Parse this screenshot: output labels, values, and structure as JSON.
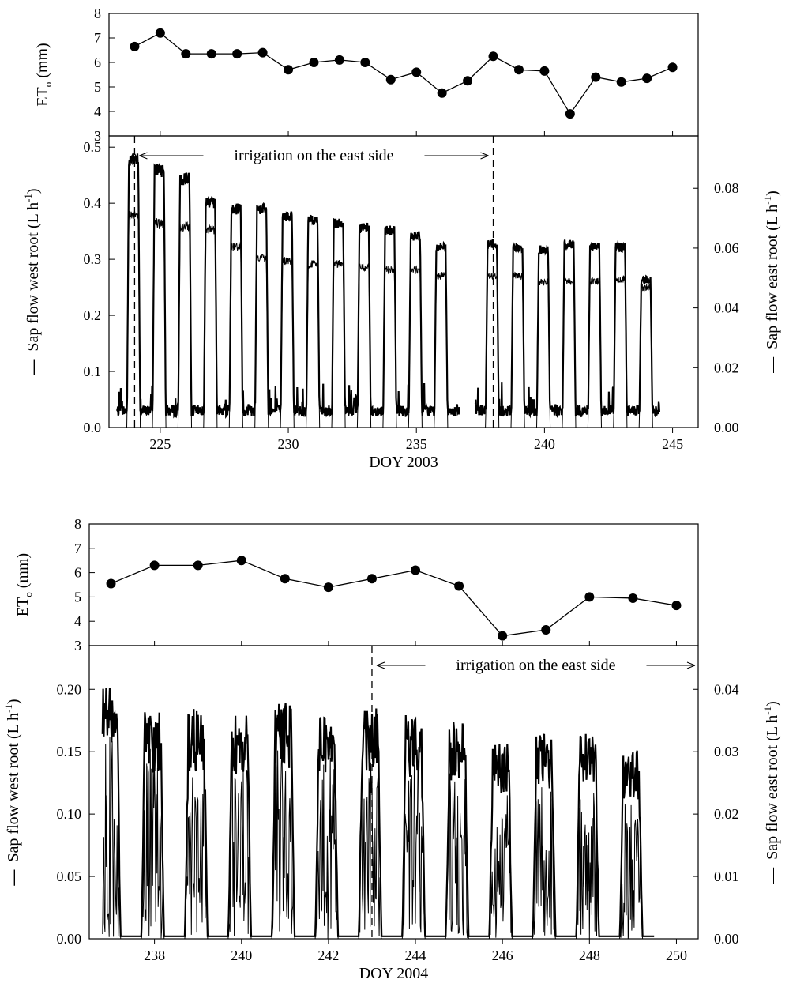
{
  "chart_data": [
    {
      "type": "line",
      "panel": "top-et",
      "ylabel": "ET",
      "ylabel_subscript": "o",
      "ylabel_unit": "(mm)",
      "ylim": [
        3,
        8
      ],
      "yticks": [
        3,
        4,
        5,
        6,
        7,
        8
      ],
      "xlim": [
        223,
        246
      ],
      "x": [
        224,
        225,
        226,
        227,
        228,
        229,
        230,
        231,
        232,
        233,
        234,
        235,
        236,
        237,
        238,
        239,
        240,
        241,
        242,
        243,
        244,
        245
      ],
      "values": [
        6.65,
        7.2,
        6.35,
        6.35,
        6.35,
        6.4,
        5.7,
        6.0,
        6.1,
        6.0,
        5.3,
        5.6,
        4.75,
        5.25,
        6.25,
        5.7,
        5.65,
        3.9,
        5.4,
        5.2,
        5.35,
        5.8
      ]
    },
    {
      "type": "line",
      "panel": "top-sap",
      "xlabel": "DOY 2003",
      "xlim": [
        223,
        246
      ],
      "xticks": [
        225,
        230,
        235,
        240,
        245
      ],
      "ylabel_left": "Sap flow west root (L h",
      "ylabel_right": "Sap flow east root (L h",
      "ylabel_sup": "-1",
      "ylabel_close": ")",
      "legend_mark": "—",
      "ylim_left": [
        0,
        0.52
      ],
      "yticks_left": [
        "0.0",
        "0.1",
        "0.2",
        "0.3",
        "0.4",
        "0.5"
      ],
      "ylim_right": [
        0,
        0.0975
      ],
      "yticks_right": [
        "0.00",
        "0.02",
        "0.04",
        "0.06",
        "0.08"
      ],
      "annotation": "irrigation on the east side",
      "irrigation_x": [
        224,
        238
      ],
      "gap": [
        236.7,
        237.3
      ],
      "series": [
        {
          "axis": "left",
          "style": "thick",
          "base": 0.03,
          "peaks": [
            0.49,
            0.49,
            0.47,
            0.455,
            0.41,
            0.4,
            0.4,
            0.385,
            0.38,
            0.375,
            0.365,
            0.36,
            0.35,
            0.33,
            0.33,
            0.335,
            0.33,
            0.325,
            0.335,
            0.33,
            0.33,
            0.27
          ]
        },
        {
          "axis": "right",
          "style": "thin",
          "base": 0.0,
          "peaks": [
            0.075,
            0.073,
            0.07,
            0.069,
            0.068,
            0.062,
            0.058,
            0.057,
            0.056,
            0.056,
            0.055,
            0.054,
            0.054,
            0.052,
            0.052,
            0.052,
            0.052,
            0.05,
            0.05,
            0.05,
            0.051,
            0.048
          ]
        }
      ]
    },
    {
      "type": "line",
      "panel": "bottom-et",
      "ylabel": "ET",
      "ylabel_subscript": "o",
      "ylabel_unit": "(mm)",
      "ylim": [
        3,
        8
      ],
      "yticks": [
        3,
        4,
        5,
        6,
        7,
        8
      ],
      "xlim": [
        236.5,
        250.5
      ],
      "x": [
        237,
        238,
        239,
        240,
        241,
        242,
        243,
        244,
        245,
        246,
        247,
        248,
        249,
        250
      ],
      "values": [
        5.55,
        6.3,
        6.3,
        6.5,
        5.75,
        5.4,
        5.75,
        6.1,
        5.45,
        3.4,
        3.65,
        5.0,
        4.95,
        4.65
      ]
    },
    {
      "type": "line",
      "panel": "bottom-sap",
      "xlabel": "DOY 2004",
      "xlim": [
        236.5,
        250.5
      ],
      "xticks": [
        238,
        240,
        242,
        244,
        246,
        248,
        250
      ],
      "ylabel_left": "Sap flow west root (L h",
      "ylabel_right": "Sap flow east root (L h",
      "ylabel_sup": "-1",
      "ylabel_close": ")",
      "legend_mark": "—",
      "ylim_left": [
        0,
        0.235
      ],
      "yticks_left": [
        "0.00",
        "0.05",
        "0.10",
        "0.15",
        "0.20"
      ],
      "ylim_right": [
        0,
        0.047
      ],
      "yticks_right": [
        "0.00",
        "0.01",
        "0.02",
        "0.03",
        "0.04"
      ],
      "annotation": "irrigation on the east side",
      "irrigation_x": [
        243
      ],
      "series": [
        {
          "axis": "left",
          "style": "thick",
          "base": 0.002,
          "peaks": [
            0.205,
            0.185,
            0.185,
            0.18,
            0.19,
            0.18,
            0.185,
            0.18,
            0.175,
            0.16,
            0.165,
            0.165,
            0.155
          ]
        },
        {
          "axis": "right",
          "style": "thin",
          "base": 0.0,
          "peaks": [
            0.03,
            0.028,
            0.028,
            0.026,
            0.03,
            0.028,
            0.026,
            0.026,
            0.025,
            0.022,
            0.023,
            0.024,
            0.02
          ]
        }
      ]
    }
  ]
}
